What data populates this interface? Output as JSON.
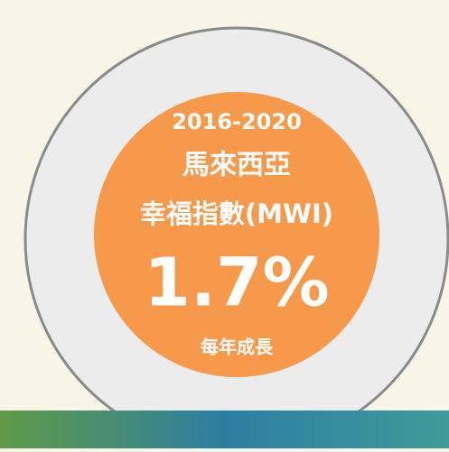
{
  "period": "2016-2020",
  "country": "馬來西亞",
  "index_name": "幸福指數(MWI)",
  "figure": "1.7%",
  "caption": "每年成長"
}
